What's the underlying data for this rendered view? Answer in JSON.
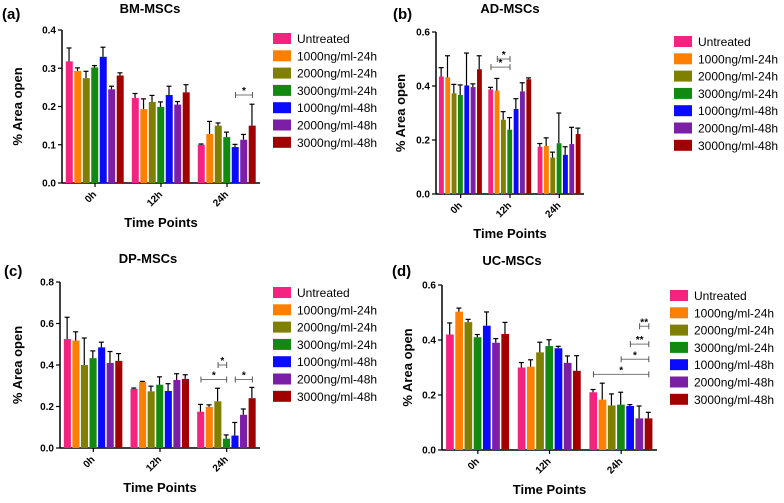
{
  "legend": [
    "Untreated",
    "1000ng/ml-24h",
    "2000ng/ml-24h",
    "3000ng/ml-24h",
    "1000ng/ml-48h",
    "2000ng/ml-48h",
    "3000ng/ml-48h"
  ],
  "colors": [
    "#f4237f",
    "#ff8000",
    "#808000",
    "#128a12",
    "#0a0aff",
    "#7b1fa6",
    "#a00000"
  ],
  "chart_data": [
    {
      "type": "bar",
      "panel": "(a)",
      "title": "BM-MSCs",
      "xlabel": "Time Points",
      "ylabel": "% Area open",
      "ylim": [
        0,
        0.4
      ],
      "yticks": [
        "0.0",
        "0.1",
        "0.2",
        "0.3",
        "0.4"
      ],
      "ytick_values": [
        0,
        0.1,
        0.2,
        0.3,
        0.4
      ],
      "categories": [
        "0h",
        "12h",
        "24h"
      ],
      "values": [
        [
          0.318,
          0.293,
          0.274,
          0.302,
          0.33,
          0.245,
          0.281
        ],
        [
          0.222,
          0.193,
          0.212,
          0.199,
          0.23,
          0.205,
          0.237
        ],
        [
          0.1,
          0.128,
          0.15,
          0.12,
          0.094,
          0.113,
          0.15
        ]
      ],
      "errors": [
        [
          0.035,
          0.008,
          0.018,
          0.005,
          0.025,
          0.008,
          0.007
        ],
        [
          0.012,
          0.027,
          0.017,
          0.013,
          0.023,
          0.008,
          0.02
        ],
        [
          0.002,
          0.033,
          0.007,
          0.013,
          0.007,
          0.014,
          0.056
        ]
      ],
      "significance": [
        {
          "group": 2,
          "from": 4,
          "to": 6,
          "y": 0.23,
          "label": "*"
        }
      ]
    },
    {
      "type": "bar",
      "panel": "(b)",
      "title": "AD-MSCs",
      "xlabel": "Time Points",
      "ylabel": "% Area open",
      "ylim": [
        0,
        0.6
      ],
      "yticks": [
        "0.0",
        "0.2",
        "0.4",
        "0.6"
      ],
      "ytick_values": [
        0,
        0.2,
        0.4,
        0.6
      ],
      "categories": [
        "0h",
        "12h",
        "24h"
      ],
      "values": [
        [
          0.435,
          0.432,
          0.373,
          0.367,
          0.402,
          0.396,
          0.462
        ],
        [
          0.387,
          0.383,
          0.275,
          0.238,
          0.315,
          0.38,
          0.425
        ],
        [
          0.175,
          0.178,
          0.135,
          0.188,
          0.145,
          0.185,
          0.222
        ]
      ],
      "errors": [
        [
          0.033,
          0.08,
          0.033,
          0.037,
          0.12,
          0.012,
          0.05
        ],
        [
          0.008,
          0.045,
          0.03,
          0.045,
          0.038,
          0.032,
          0.005
        ],
        [
          0.012,
          0.03,
          0.02,
          0.112,
          0.03,
          0.062,
          0.022
        ]
      ],
      "significance": [
        {
          "group": 1,
          "from": 1,
          "to": 3,
          "y": 0.5,
          "label": "*"
        },
        {
          "group": 1,
          "from": 0,
          "to": 3,
          "y": 0.47,
          "label": "*"
        }
      ]
    },
    {
      "type": "bar",
      "panel": "(c)",
      "title": "DP-MSCs",
      "xlabel": "Time Points",
      "ylabel": "% Area open",
      "ylim": [
        0,
        0.8
      ],
      "yticks": [
        "0.0",
        "0.2",
        "0.4",
        "0.6",
        "0.8"
      ],
      "ytick_values": [
        0,
        0.2,
        0.4,
        0.6,
        0.8
      ],
      "categories": [
        "0h",
        "12h",
        "24h"
      ],
      "values": [
        [
          0.525,
          0.518,
          0.4,
          0.433,
          0.485,
          0.41,
          0.42
        ],
        [
          0.285,
          0.318,
          0.273,
          0.305,
          0.275,
          0.328,
          0.333
        ],
        [
          0.175,
          0.198,
          0.225,
          0.045,
          0.06,
          0.16,
          0.24
        ]
      ],
      "errors": [
        [
          0.105,
          0.042,
          0.13,
          0.035,
          0.025,
          0.055,
          0.035
        ],
        [
          0.004,
          0.003,
          0.025,
          0.038,
          0.035,
          0.03,
          0.02
        ],
        [
          0.035,
          0.01,
          0.063,
          0.018,
          0.063,
          0.028,
          0.052
        ]
      ],
      "significance": [
        {
          "group": 2,
          "from": 2,
          "to": 3,
          "y": 0.4,
          "label": "*"
        },
        {
          "group": 2,
          "from": 0,
          "to": 3,
          "y": 0.33,
          "label": "*"
        },
        {
          "group": 2,
          "from": 4,
          "to": 6,
          "y": 0.33,
          "label": "*"
        }
      ]
    },
    {
      "type": "bar",
      "panel": "(d)",
      "title": "UC-MSCs",
      "xlabel": "Time Points",
      "ylabel": "% Area open",
      "ylim": [
        0,
        0.6
      ],
      "yticks": [
        "0.0",
        "0.2",
        "0.4",
        "0.6"
      ],
      "ytick_values": [
        0,
        0.2,
        0.4,
        0.6
      ],
      "categories": [
        "0h",
        "12h",
        "24h"
      ],
      "values": [
        [
          0.42,
          0.503,
          0.465,
          0.41,
          0.452,
          0.39,
          0.422
        ],
        [
          0.3,
          0.303,
          0.355,
          0.378,
          0.37,
          0.317,
          0.288
        ],
        [
          0.21,
          0.183,
          0.162,
          0.165,
          0.16,
          0.115,
          0.115
        ]
      ],
      "errors": [
        [
          0.042,
          0.013,
          0.01,
          0.01,
          0.05,
          0.015,
          0.042
        ],
        [
          0.018,
          0.025,
          0.037,
          0.023,
          0.007,
          0.025,
          0.055
        ],
        [
          0.01,
          0.06,
          0.042,
          0.045,
          0.005,
          0.045,
          0.022
        ]
      ],
      "significance": [
        {
          "group": 2,
          "from": 5,
          "to": 6,
          "y": 0.45,
          "label": "**"
        },
        {
          "group": 2,
          "from": 4,
          "to": 6,
          "y": 0.385,
          "label": "**"
        },
        {
          "group": 2,
          "from": 3,
          "to": 6,
          "y": 0.33,
          "label": "*"
        },
        {
          "group": 2,
          "from": 0,
          "to": 6,
          "y": 0.275,
          "label": "*"
        }
      ]
    }
  ]
}
